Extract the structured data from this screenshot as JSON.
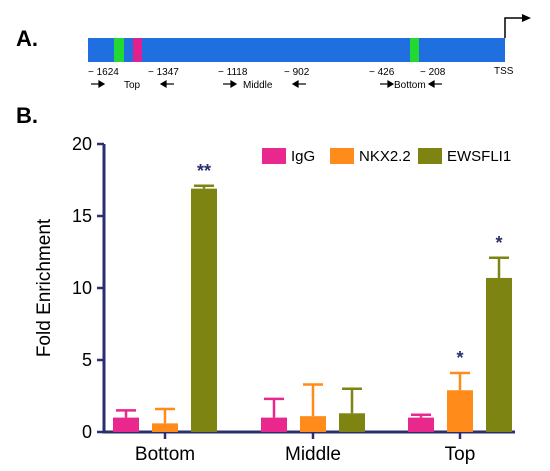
{
  "panel_a": {
    "label": "A.",
    "positions": [
      "− 1624",
      "− 1347",
      "− 1118",
      "− 902",
      "− 426",
      "− 208"
    ],
    "tss_label": "TSS",
    "regions": [
      "Top",
      "Middle",
      "Bottom"
    ],
    "colors": {
      "promoter": "#1f6fe0",
      "green": "#22d832",
      "magenta": "#e0208c"
    }
  },
  "panel_b": {
    "label": "B."
  },
  "chart_data": {
    "type": "bar",
    "categories": [
      "Bottom",
      "Middle",
      "Top"
    ],
    "series": [
      {
        "name": "IgG",
        "color": "#e8288c",
        "values": [
          1.0,
          1.0,
          1.0
        ],
        "errors": [
          0.5,
          1.3,
          0.2
        ]
      },
      {
        "name": "NKX2.2",
        "color": "#ff8c1a",
        "values": [
          0.6,
          1.1,
          2.9
        ],
        "errors": [
          1.0,
          2.2,
          1.2
        ]
      },
      {
        "name": "EWSFLI1",
        "color": "#7d8412",
        "values": [
          16.9,
          1.3,
          10.7
        ],
        "errors": [
          0.2,
          1.7,
          1.4
        ]
      }
    ],
    "significance": [
      {
        "category": "Bottom",
        "series": "EWSFLI1",
        "label": "**"
      },
      {
        "category": "Top",
        "series": "NKX2.2",
        "label": "*"
      },
      {
        "category": "Top",
        "series": "EWSFLI1",
        "label": "*"
      }
    ],
    "ylabel": "Fold Enrichment",
    "ylim": [
      0,
      20
    ],
    "yticks": [
      "0",
      "5",
      "10",
      "15",
      "20"
    ],
    "legend": "top-right",
    "axis_color": "#2b2f6e"
  }
}
